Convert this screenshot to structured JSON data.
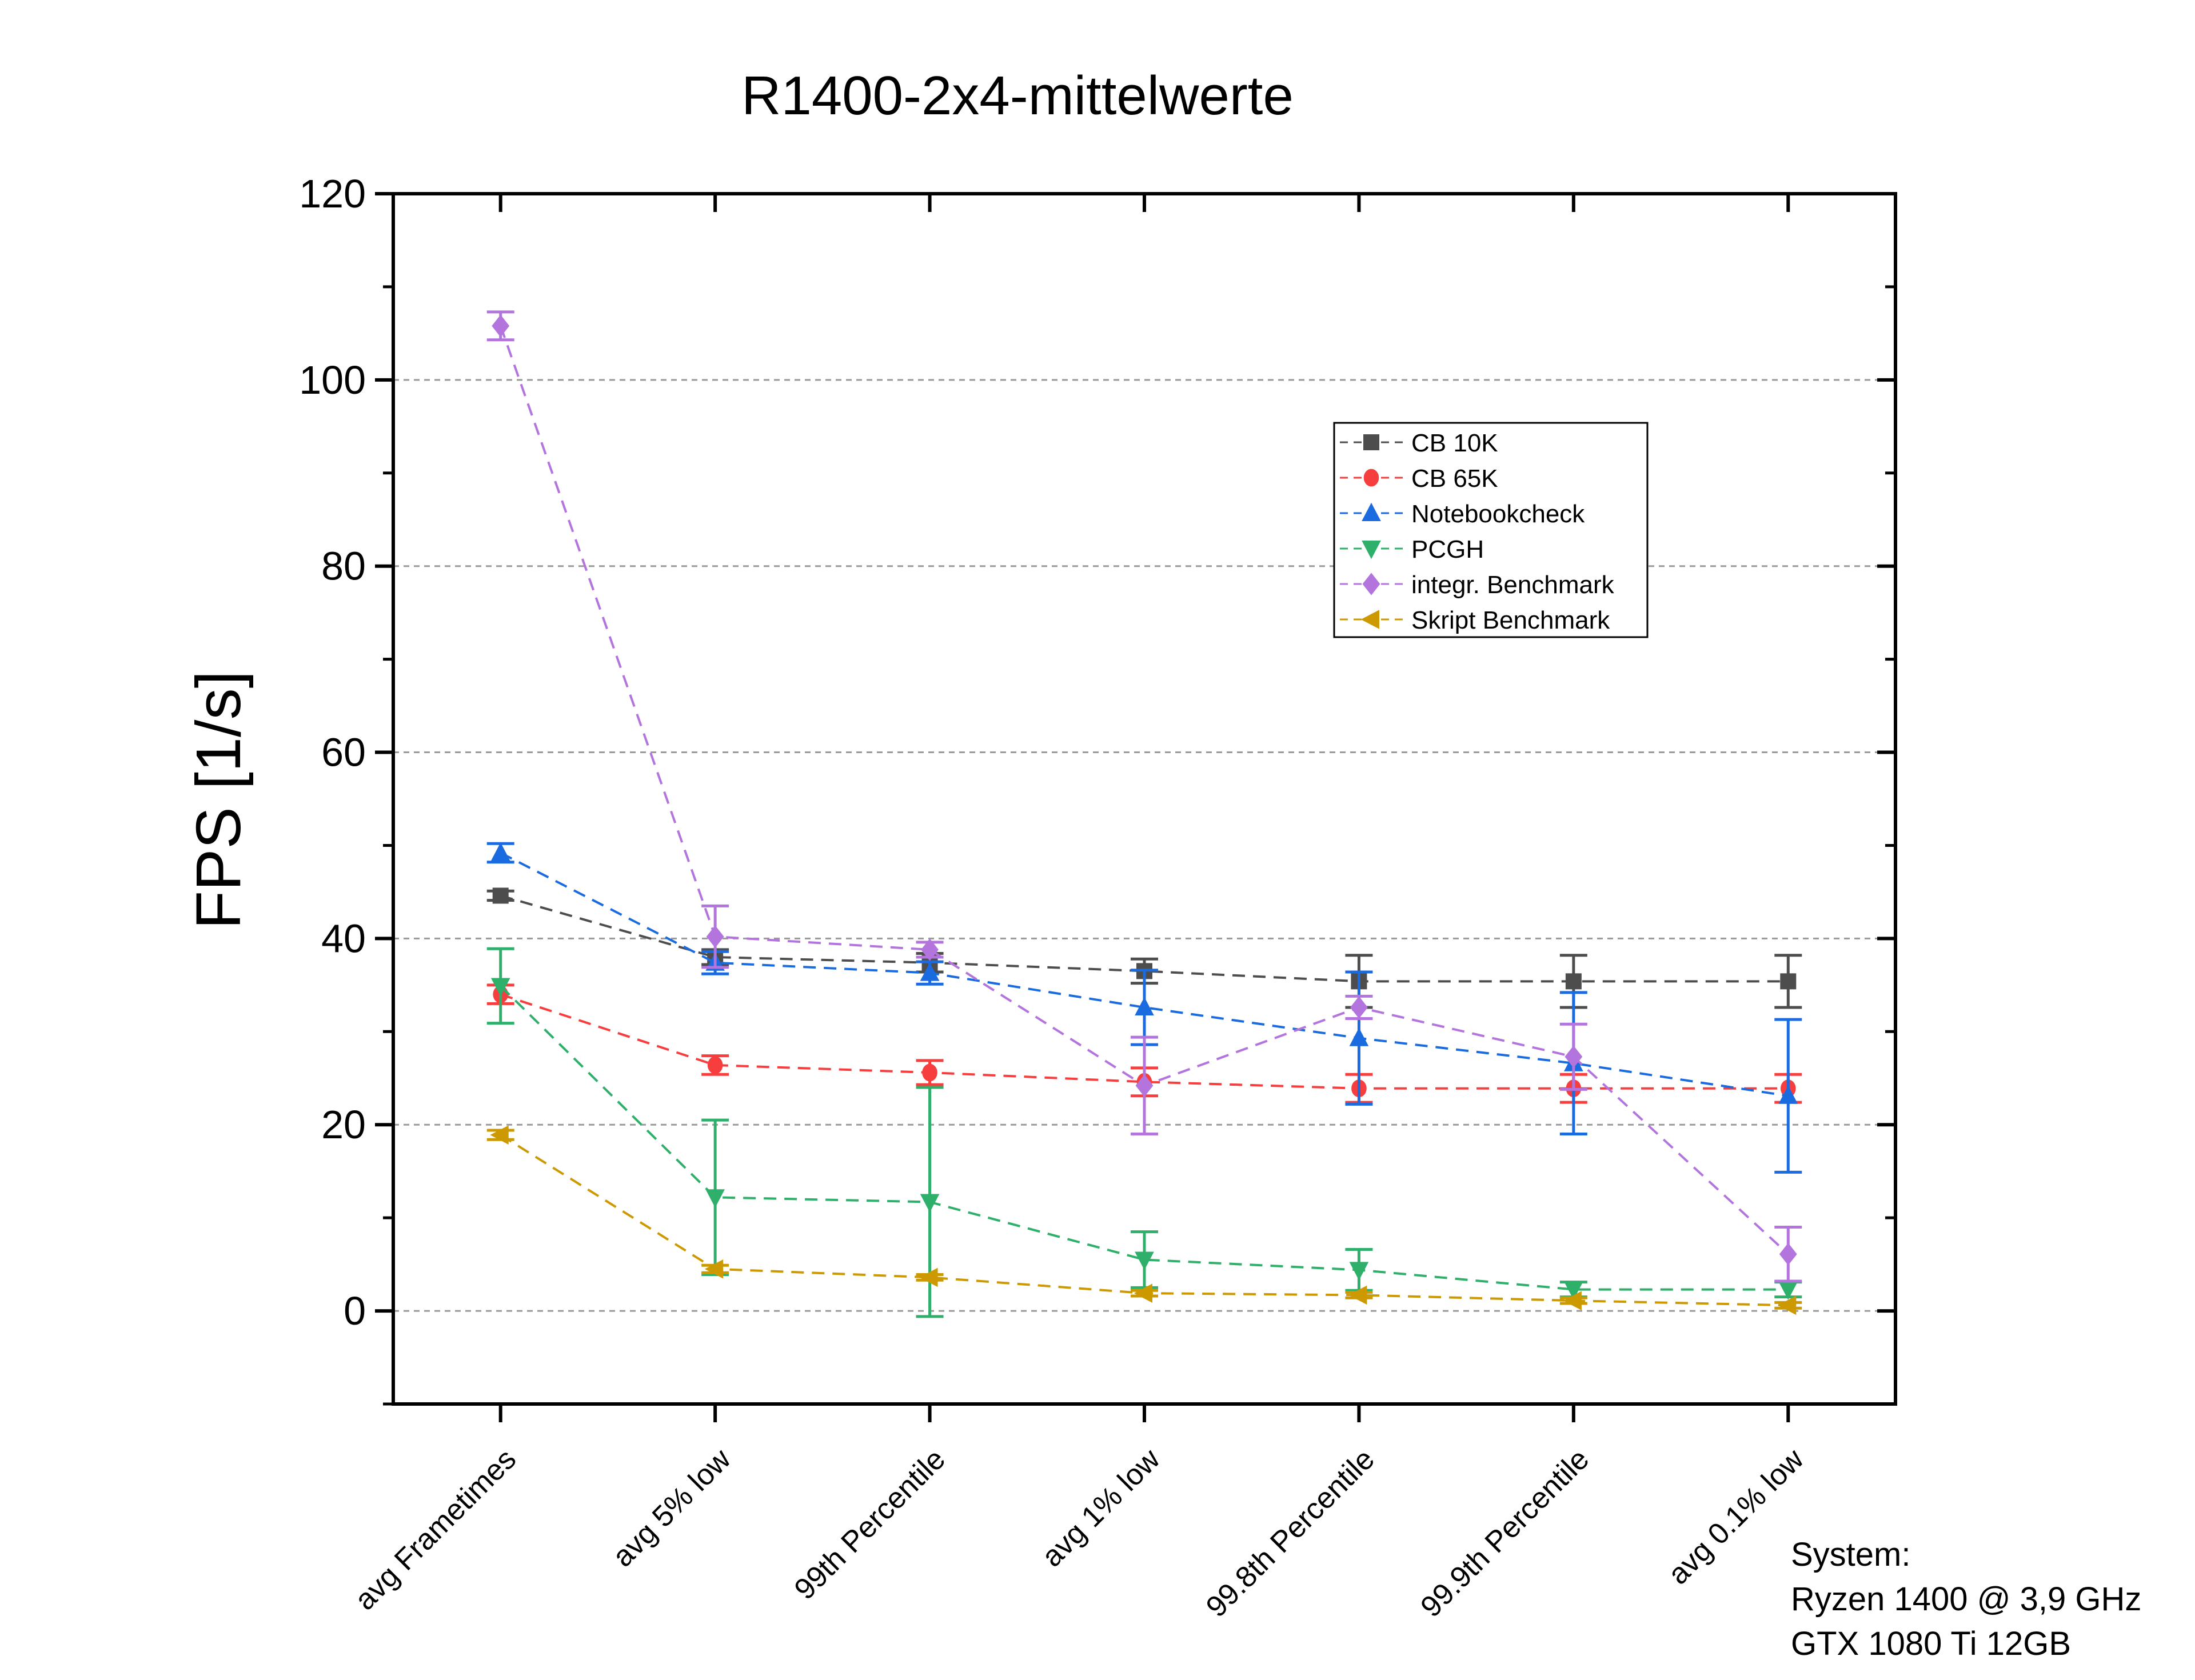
{
  "chart_data": {
    "type": "line",
    "title": "R1400-2x4-mittelwerte",
    "xlabel": "",
    "ylabel": "FPS [1/s]",
    "ylim": [
      -10,
      120
    ],
    "yticks": [
      0,
      20,
      40,
      60,
      80,
      100,
      120
    ],
    "grid": "horizontal dashed at major ticks",
    "legend_position": "upper-right inside",
    "categories": [
      "avg Frametimes",
      "avg 5% low",
      "99th Percentile",
      "avg 1% low",
      "99.8th Percentile",
      "99.9th Percentile",
      "avg 0.1% low"
    ],
    "series": [
      {
        "name": "CB 10K",
        "color": "#4d4d4d",
        "marker": "square",
        "values": [
          44.6,
          38.0,
          37.4,
          36.5,
          35.4,
          35.4,
          35.4
        ],
        "errors": [
          0.5,
          0.8,
          1.0,
          1.3,
          2.8,
          2.8,
          2.8
        ]
      },
      {
        "name": "CB 65K",
        "color": "#f73e3e",
        "marker": "circle",
        "values": [
          34.0,
          26.4,
          25.6,
          24.6,
          23.9,
          23.9,
          23.9
        ],
        "errors": [
          1.0,
          1.0,
          1.3,
          1.5,
          1.5,
          1.5,
          1.5
        ]
      },
      {
        "name": "Notebookcheck",
        "color": "#1a6ae0",
        "marker": "triangle-up",
        "values": [
          49.2,
          37.4,
          36.3,
          32.6,
          29.3,
          26.6,
          23.1
        ],
        "errors": [
          1.0,
          1.2,
          1.2,
          4.0,
          7.1,
          7.6,
          8.2
        ]
      },
      {
        "name": "PCGH",
        "color": "#2eaf6a",
        "marker": "triangle-down",
        "values": [
          34.9,
          12.2,
          11.7,
          5.5,
          4.4,
          2.3,
          2.3
        ],
        "errors": [
          4.0,
          8.3,
          12.3,
          3.0,
          2.2,
          0.8,
          0.8
        ]
      },
      {
        "name": "integr. Benchmark",
        "color": "#b374dd",
        "marker": "diamond",
        "values": [
          105.8,
          40.2,
          38.8,
          24.2,
          32.6,
          27.3,
          6.1
        ],
        "errors": [
          1.5,
          3.3,
          0.8,
          5.2,
          1.2,
          3.5,
          2.9
        ]
      },
      {
        "name": "Skript Benchmark",
        "color": "#cc9900",
        "marker": "triangle-left",
        "values": [
          18.9,
          4.5,
          3.6,
          1.9,
          1.7,
          1.1,
          0.6
        ],
        "errors": [
          0.5,
          0.4,
          0.3,
          0.3,
          0.3,
          0.3,
          0.3
        ]
      }
    ],
    "annotation": [
      "System:",
      "Ryzen 1400 @ 3,9 GHz",
      "GTX 1080 Ti 12GB"
    ]
  }
}
